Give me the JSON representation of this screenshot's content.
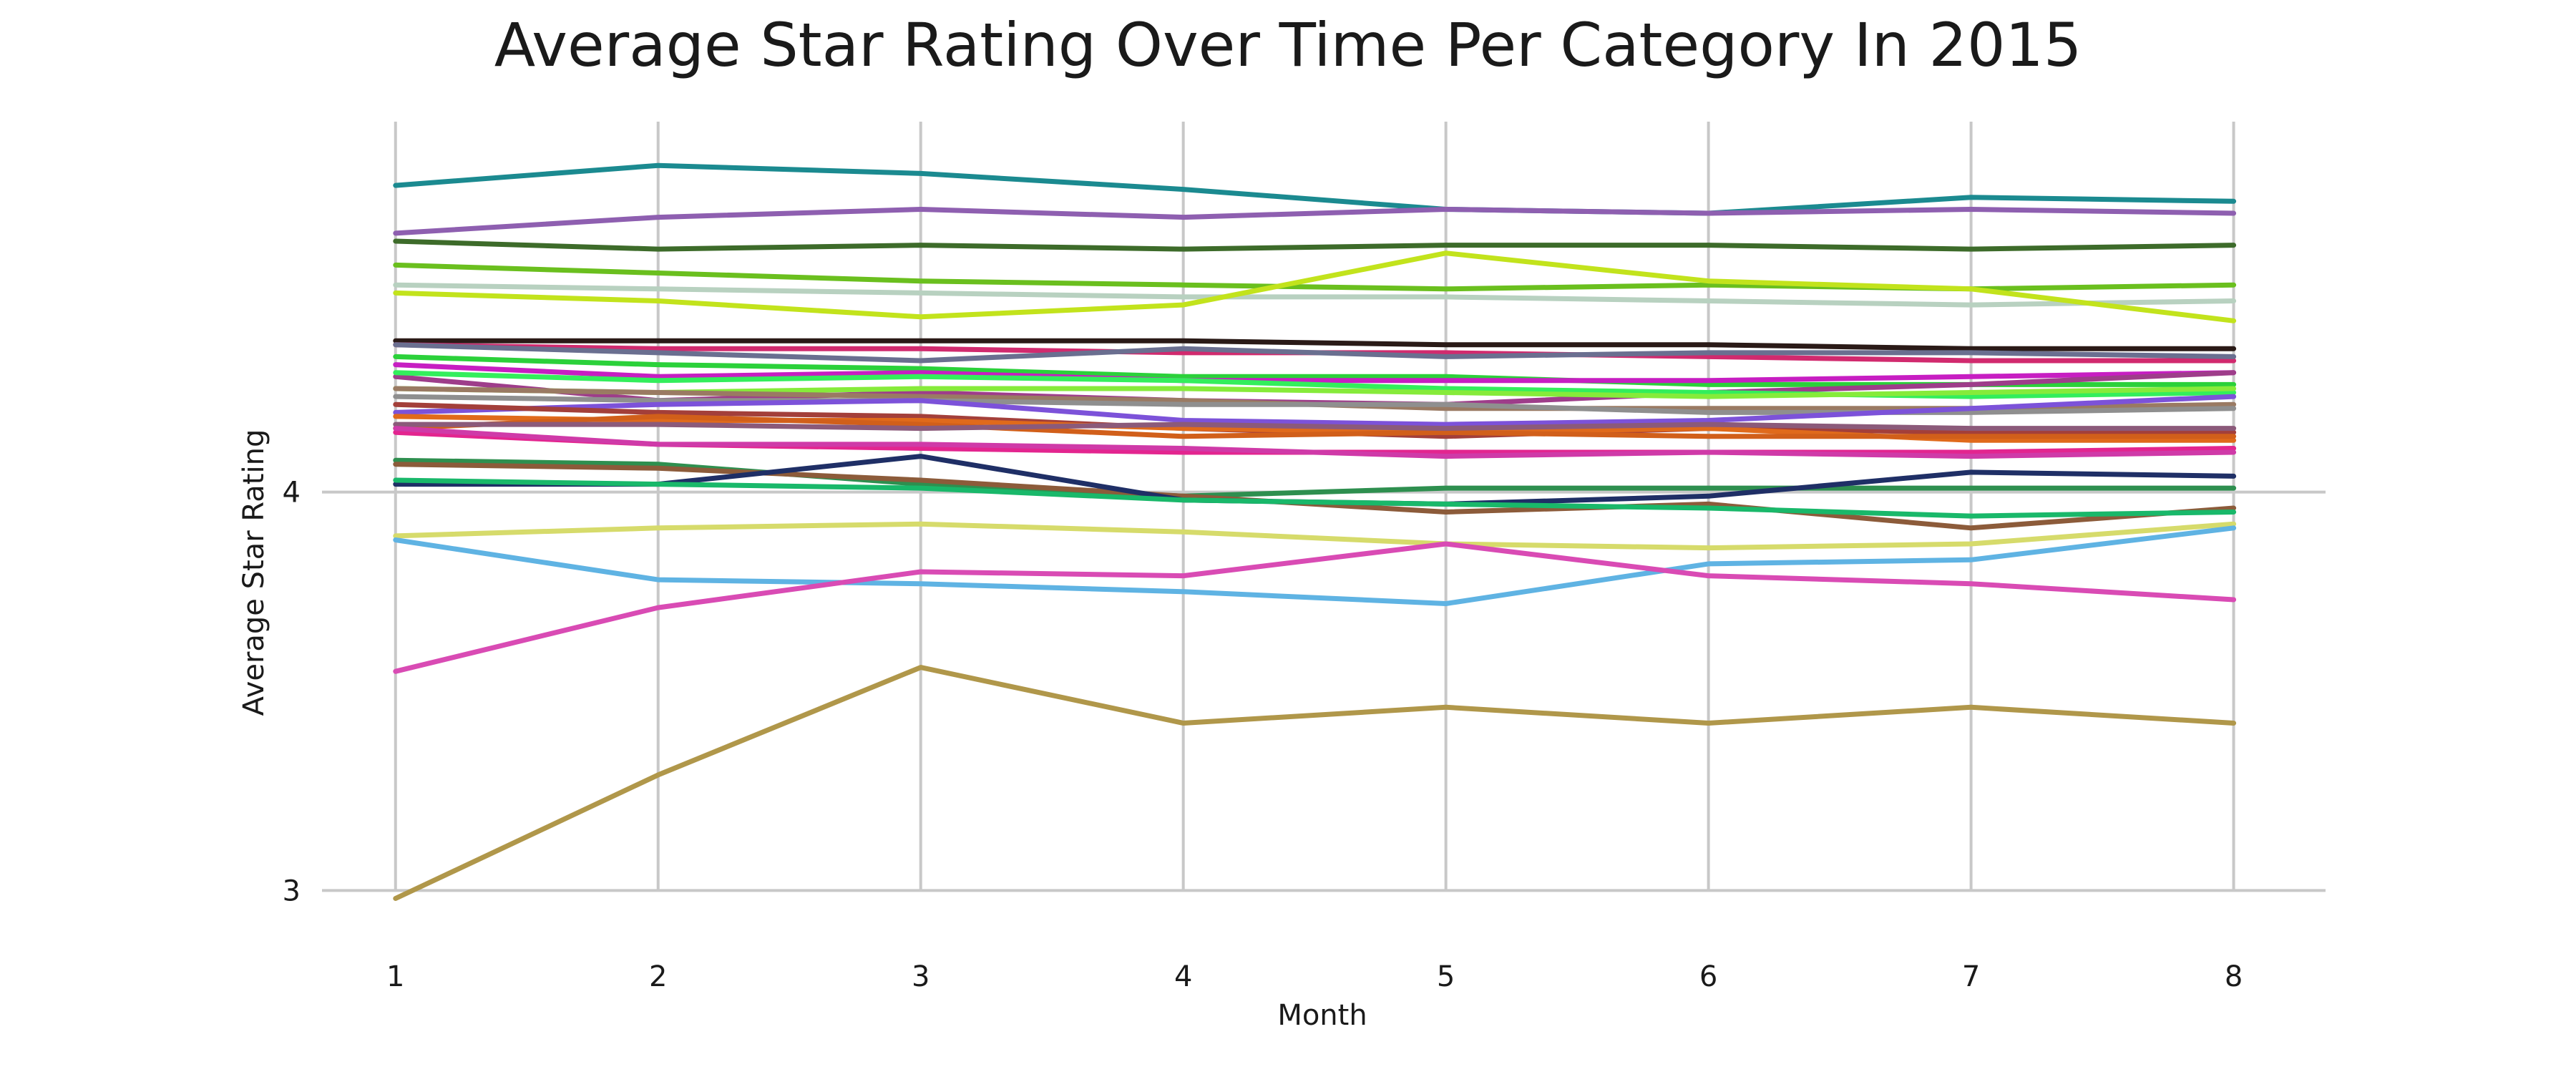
{
  "chart_data": {
    "type": "line",
    "title": "Average Star Rating Over Time Per Category In 2015",
    "xlabel": "Month",
    "ylabel": "Average Star Rating",
    "x": [
      1,
      2,
      3,
      4,
      5,
      6,
      7,
      8
    ],
    "x_ticks": [
      "1",
      "2",
      "3",
      "4",
      "5",
      "6",
      "7",
      "8"
    ],
    "y_ticks": [
      "3",
      "4"
    ],
    "y_tick_values": [
      3,
      4
    ],
    "xlim": [
      0.72,
      8.35
    ],
    "ylim": [
      2.9,
      4.93
    ],
    "grid": true,
    "legend": "none",
    "series": [
      {
        "color": "#1b8a90",
        "values": [
          4.77,
          4.82,
          4.8,
          4.76,
          4.71,
          4.7,
          4.74,
          4.73
        ]
      },
      {
        "color": "#8e5fb0",
        "values": [
          4.65,
          4.69,
          4.71,
          4.69,
          4.71,
          4.7,
          4.71,
          4.7
        ]
      },
      {
        "color": "#3d6b2a",
        "values": [
          4.63,
          4.61,
          4.62,
          4.61,
          4.62,
          4.62,
          4.61,
          4.62
        ]
      },
      {
        "color": "#6abf1e",
        "values": [
          4.57,
          4.55,
          4.53,
          4.52,
          4.51,
          4.52,
          4.51,
          4.52
        ]
      },
      {
        "color": "#b8d1c0",
        "values": [
          4.52,
          4.51,
          4.5,
          4.49,
          4.49,
          4.48,
          4.47,
          4.48
        ]
      },
      {
        "color": "#c2e31c",
        "values": [
          4.5,
          4.48,
          4.44,
          4.47,
          4.6,
          4.53,
          4.51,
          4.43
        ]
      },
      {
        "color": "#2a1a17",
        "values": [
          4.38,
          4.38,
          4.38,
          4.38,
          4.37,
          4.37,
          4.36,
          4.36
        ]
      },
      {
        "color": "#d12a6e",
        "values": [
          4.37,
          4.36,
          4.36,
          4.35,
          4.35,
          4.34,
          4.33,
          4.33
        ]
      },
      {
        "color": "#6a6f90",
        "values": [
          4.37,
          4.35,
          4.33,
          4.36,
          4.34,
          4.35,
          4.35,
          4.34
        ]
      },
      {
        "color": "#2bd13a",
        "values": [
          4.34,
          4.32,
          4.31,
          4.29,
          4.29,
          4.27,
          4.27,
          4.27
        ]
      },
      {
        "color": "#c71ec2",
        "values": [
          4.32,
          4.29,
          4.3,
          4.28,
          4.28,
          4.28,
          4.29,
          4.3
        ]
      },
      {
        "color": "#9e3d8a",
        "values": [
          4.29,
          4.23,
          4.25,
          4.23,
          4.22,
          4.25,
          4.27,
          4.3
        ]
      },
      {
        "color": "#33ee5c",
        "values": [
          4.3,
          4.28,
          4.29,
          4.28,
          4.26,
          4.25,
          4.24,
          4.25
        ]
      },
      {
        "color": "#86eb3a",
        "values": [
          4.26,
          4.25,
          4.26,
          4.26,
          4.25,
          4.24,
          4.25,
          4.26
        ]
      },
      {
        "color": "#9a7a63",
        "values": [
          4.26,
          4.25,
          4.24,
          4.23,
          4.21,
          4.21,
          4.21,
          4.22
        ]
      },
      {
        "color": "#8f8f8f",
        "values": [
          4.24,
          4.23,
          4.23,
          4.22,
          4.22,
          4.2,
          4.2,
          4.21
        ]
      },
      {
        "color": "#7c52d9",
        "values": [
          4.2,
          4.22,
          4.23,
          4.18,
          4.17,
          4.18,
          4.21,
          4.24
        ]
      },
      {
        "color": "#a33f3a",
        "values": [
          4.22,
          4.2,
          4.19,
          4.16,
          4.14,
          4.16,
          4.15,
          4.15
        ]
      },
      {
        "color": "#e06a1b",
        "values": [
          4.19,
          4.18,
          4.18,
          4.16,
          4.15,
          4.16,
          4.13,
          4.13
        ]
      },
      {
        "color": "#d15f1a",
        "values": [
          4.16,
          4.19,
          4.17,
          4.14,
          4.15,
          4.14,
          4.14,
          4.14
        ]
      },
      {
        "color": "#8b5a7a",
        "values": [
          4.17,
          4.17,
          4.16,
          4.17,
          4.16,
          4.17,
          4.16,
          4.16
        ]
      },
      {
        "color": "#e3258f",
        "values": [
          4.15,
          4.12,
          4.11,
          4.1,
          4.1,
          4.1,
          4.1,
          4.11
        ]
      },
      {
        "color": "#cf3aa8",
        "values": [
          4.16,
          4.12,
          4.12,
          4.11,
          4.09,
          4.1,
          4.09,
          4.1
        ]
      },
      {
        "color": "#2e8f4f",
        "values": [
          4.08,
          4.07,
          4.02,
          3.99,
          4.01,
          4.01,
          4.01,
          4.01
        ]
      },
      {
        "color": "#8c5b3a",
        "values": [
          4.07,
          4.06,
          4.03,
          3.99,
          3.95,
          3.97,
          3.91,
          3.96
        ]
      },
      {
        "color": "#1f2f66",
        "values": [
          4.02,
          4.02,
          4.09,
          3.98,
          3.97,
          3.99,
          4.05,
          4.04
        ]
      },
      {
        "color": "#19b86a",
        "values": [
          4.03,
          4.02,
          4.01,
          3.98,
          3.97,
          3.96,
          3.94,
          3.95
        ]
      },
      {
        "color": "#d6db6b",
        "values": [
          3.89,
          3.91,
          3.92,
          3.9,
          3.87,
          3.86,
          3.87,
          3.92
        ]
      },
      {
        "color": "#5fb3e3",
        "values": [
          3.88,
          3.78,
          3.77,
          3.75,
          3.72,
          3.82,
          3.83,
          3.91
        ]
      },
      {
        "color": "#d94bb4",
        "values": [
          3.55,
          3.71,
          3.8,
          3.79,
          3.87,
          3.79,
          3.77,
          3.73
        ]
      },
      {
        "color": "#b0974a",
        "values": [
          2.98,
          3.29,
          3.56,
          3.42,
          3.46,
          3.42,
          3.46,
          3.42
        ]
      }
    ]
  }
}
